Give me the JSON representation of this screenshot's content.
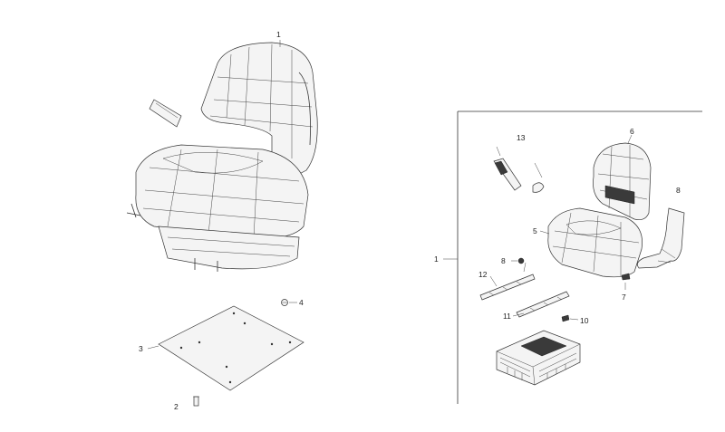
{
  "callouts": {
    "seat_assembly": "1",
    "bolt": "2",
    "mounting_plate": "3",
    "nut": "4",
    "cushion": "5",
    "backrest": "6",
    "clip": "7",
    "panel": "8",
    "small_part_8": "8",
    "armrest_kit": "13",
    "rail_12": "12",
    "rail_11": "11",
    "screw_10": "10",
    "kit_group": "1"
  },
  "colors": {
    "line": "#333333",
    "background": "#ffffff"
  }
}
